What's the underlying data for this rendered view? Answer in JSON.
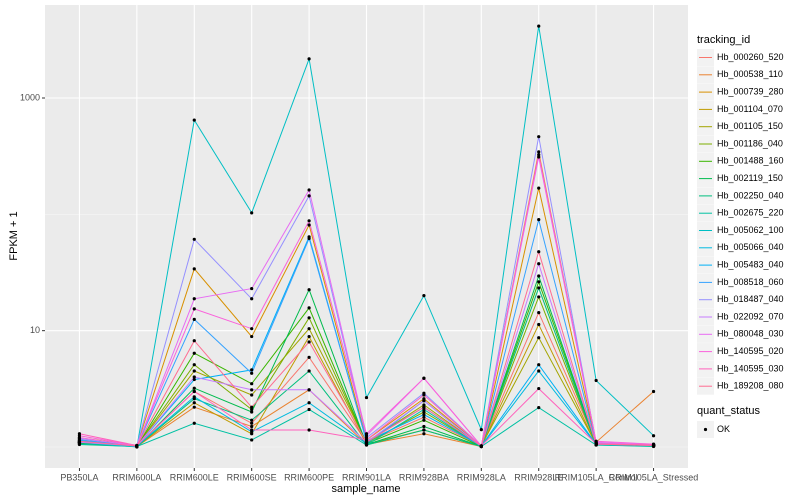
{
  "chart_data": {
    "type": "line",
    "xlabel": "sample_name",
    "ylabel": "FPKM + 1",
    "log_y": true,
    "grid": true,
    "ylim": [
      0.66,
      6300
    ],
    "yticks": [
      10,
      1000
    ],
    "yminor": [
      1,
      100
    ],
    "categories": [
      "PB350LA",
      "RRIM600LA",
      "RRIM600LE",
      "RRIM600SE",
      "RRIM600PE",
      "RRIM901LA",
      "RRIM928BA",
      "RRIM928LA",
      "RRIM928LE",
      "RRIM105LA_Control",
      "RRIM105LA_Stressed"
    ],
    "legend_title": "tracking_id",
    "point_legend": {
      "title": "quant_status",
      "items": [
        "OK"
      ],
      "color": "#000000"
    },
    "series": [
      {
        "name": "Hb_000260_520",
        "color": "#F8766D",
        "values": [
          1.15,
          1.02,
          3.0,
          1.6,
          5.9,
          1.1,
          1.8,
          1.02,
          14.3,
          1.08,
          1.05
        ]
      },
      {
        "name": "Hb_000538_110",
        "color": "#EA8331",
        "values": [
          1.1,
          1.01,
          2.2,
          1.5,
          3.1,
          1.05,
          1.3,
          1.01,
          344,
          1.1,
          3.0
        ]
      },
      {
        "name": "Hb_000739_280",
        "color": "#D89000",
        "values": [
          1.2,
          1.03,
          34,
          8.9,
          81,
          1.15,
          2.6,
          1.02,
          168,
          1.07,
          1.02
        ]
      },
      {
        "name": "Hb_001104_070",
        "color": "#C09B00",
        "values": [
          1.08,
          1.01,
          2.4,
          1.3,
          8.9,
          1.06,
          1.4,
          1.01,
          11.3,
          1.05,
          1.03
        ]
      },
      {
        "name": "Hb_001105_150",
        "color": "#A3A500",
        "values": [
          1.1,
          1.02,
          4.5,
          2.8,
          10.4,
          1.1,
          2.3,
          1.02,
          8.7,
          1.06,
          1.04
        ]
      },
      {
        "name": "Hb_001186_040",
        "color": "#7CAE00",
        "values": [
          1.12,
          1.02,
          5.1,
          2.1,
          12.9,
          1.08,
          2.0,
          1.02,
          19.5,
          1.05,
          1.02
        ]
      },
      {
        "name": "Hb_001488_160",
        "color": "#39B600",
        "values": [
          1.09,
          1.01,
          6.4,
          3.5,
          15.7,
          1.07,
          1.7,
          1.01,
          26.3,
          1.06,
          1.03
        ]
      },
      {
        "name": "Hb_002119_150",
        "color": "#00BB4E",
        "values": [
          1.07,
          1.01,
          3.2,
          2.0,
          22.5,
          1.05,
          1.5,
          1.01,
          29.5,
          1.05,
          1.02
        ]
      },
      {
        "name": "Hb_002250_040",
        "color": "#00BF7D",
        "values": [
          1.05,
          1.01,
          2.6,
          1.7,
          4.5,
          1.04,
          1.4,
          1.01,
          23.3,
          1.04,
          1.02
        ]
      },
      {
        "name": "Hb_002675_220",
        "color": "#00C1A3",
        "values": [
          1.06,
          1.01,
          1.6,
          1.15,
          2.1,
          1.04,
          2.1,
          1.01,
          2.18,
          1.04,
          1.01
        ]
      },
      {
        "name": "Hb_005062_100",
        "color": "#00BFC4",
        "values": [
          1.1,
          1.0,
          646,
          103,
          2170,
          2.66,
          20,
          1.41,
          4150,
          3.73,
          1.25
        ]
      },
      {
        "name": "Hb_005066_040",
        "color": "#00BAE0",
        "values": [
          1.1,
          1.02,
          2.7,
          1.35,
          2.4,
          1.07,
          2.5,
          1.01,
          4.5,
          1.05,
          1.03
        ]
      },
      {
        "name": "Hb_005483_040",
        "color": "#00B0F6",
        "values": [
          1.13,
          1.02,
          3.8,
          4.6,
          64,
          1.12,
          1.9,
          1.02,
          5.1,
          1.06,
          1.04
        ]
      },
      {
        "name": "Hb_008518_060",
        "color": "#35A2FF",
        "values": [
          1.15,
          1.02,
          12.5,
          4.3,
          62,
          1.12,
          2.2,
          1.02,
          90,
          1.07,
          1.03
        ]
      },
      {
        "name": "Hb_018487_040",
        "color": "#9590FF",
        "values": [
          1.18,
          1.03,
          61,
          18.8,
          144,
          1.2,
          2.9,
          1.02,
          465,
          1.08,
          1.05
        ]
      },
      {
        "name": "Hb_022092_070",
        "color": "#C77CFF",
        "values": [
          1.1,
          1.02,
          4.0,
          3.1,
          3.1,
          1.1,
          2.5,
          1.01,
          37.6,
          1.06,
          1.03
        ]
      },
      {
        "name": "Hb_080048_030",
        "color": "#E76BF3",
        "values": [
          1.2,
          1.02,
          18.8,
          23,
          162,
          1.25,
          3.9,
          1.02,
          311,
          1.1,
          1.04
        ]
      },
      {
        "name": "Hb_140595_020",
        "color": "#FA62DB",
        "values": [
          1.25,
          1.03,
          15.4,
          10.4,
          88,
          1.3,
          3.9,
          1.02,
          325,
          1.12,
          1.06
        ]
      },
      {
        "name": "Hb_140595_030",
        "color": "#FF62BC",
        "values": [
          1.3,
          1.03,
          3.0,
          1.4,
          1.4,
          1.15,
          2.8,
          1.02,
          3.18,
          1.07,
          1.04
        ]
      },
      {
        "name": "Hb_189208_080",
        "color": "#FF6C91",
        "values": [
          1.12,
          1.02,
          8.2,
          2.2,
          8.0,
          1.1,
          2.2,
          1.02,
          47.7,
          1.06,
          1.03
        ]
      }
    ]
  }
}
